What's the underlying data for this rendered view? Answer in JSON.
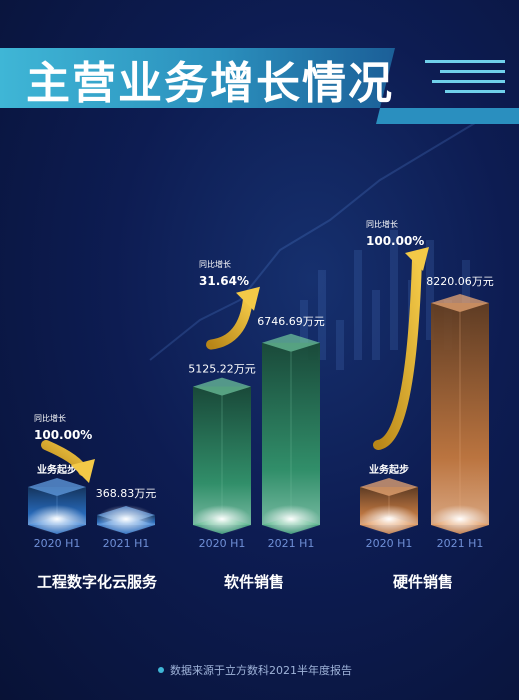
{
  "header": {
    "title": "主营业务增长情况"
  },
  "chart_data": {
    "type": "bar",
    "title": "主营业务增长情况",
    "categories": [
      "工程数字化云服务",
      "软件销售",
      "硬件销售"
    ],
    "period_labels": [
      "2020 H1",
      "2021 H1"
    ],
    "unit": "万元",
    "groups": [
      {
        "name": "工程数字化云服务",
        "value_2020": null,
        "value_2020_label": "业务起步",
        "value_2021": 368.83,
        "value_2021_label": "368.83万元",
        "growth_caption": "同比增长",
        "growth": "100.00%",
        "color": "#2e7bd6"
      },
      {
        "name": "软件销售",
        "value_2020": 5125.22,
        "value_2020_label": "5125.22万元",
        "value_2021": 6746.69,
        "value_2021_label": "6746.69万元",
        "growth_caption": "同比增长",
        "growth": "31.64%",
        "color": "#3aa977"
      },
      {
        "name": "硬件销售",
        "value_2020": null,
        "value_2020_label": "业务起步",
        "value_2021": 8220.06,
        "value_2021_label": "8220.06万元",
        "growth_caption": "同比增长",
        "growth": "100.00%",
        "color": "#e08a45"
      }
    ]
  },
  "footer": {
    "source": "数据来源于立方数科2021半年度报告"
  },
  "colors": {
    "background": "#0d1c52",
    "banner": "#2ea0c6",
    "arrow": "#e8b63a"
  }
}
